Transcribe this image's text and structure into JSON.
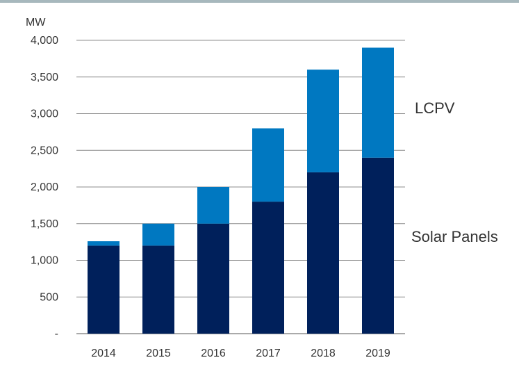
{
  "chart_data": {
    "type": "bar",
    "stacked": true,
    "ylabel": "MW",
    "categories": [
      "2014",
      "2015",
      "2016",
      "2017",
      "2018",
      "2019"
    ],
    "series": [
      {
        "name": "Solar Panels",
        "values": [
          1200,
          1200,
          1500,
          1800,
          2200,
          2400
        ],
        "color": "#00205b"
      },
      {
        "name": "LCPV",
        "values": [
          60,
          300,
          500,
          1000,
          1400,
          1500
        ],
        "color": "#0078c1"
      }
    ],
    "ylim": [
      0,
      4000
    ],
    "yticks": [
      0,
      500,
      1000,
      1500,
      2000,
      2500,
      3000,
      3500,
      4000
    ],
    "ytick_labels": [
      "-",
      "500",
      "1,000",
      "1,500",
      "2,000",
      "2,500",
      "3,000",
      "3,500",
      "4,000"
    ],
    "grid": true,
    "legend": "direct labels at right of bars"
  }
}
